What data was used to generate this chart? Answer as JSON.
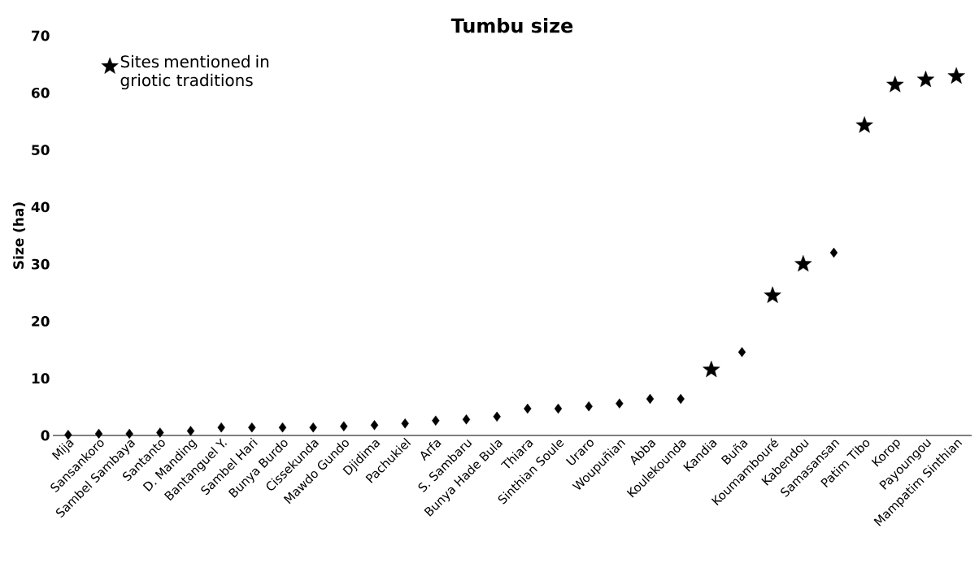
{
  "chart_data": {
    "type": "scatter",
    "title": "Tumbu size",
    "ylabel": "Size (ha)",
    "categories": [
      "Mija",
      "Sansankoro",
      "Sambel Sambaya",
      "Santanto",
      "D. Manding",
      "Bantanguel Y.",
      "Sambel Hari",
      "Bunya Burdo",
      "Cissekunda",
      "Mawdo Gundo",
      "Djidima",
      "Pachukiel",
      "Arfa",
      "S. Sambaru",
      "Bunya Hade Bula",
      "Thiara",
      "Sinthian Soule",
      "Uraro",
      "Woupuñian",
      "Abba",
      "Koulekounda",
      "Kandia",
      "Buña",
      "Koumambouré",
      "Kabendou",
      "Samasansan",
      "Patim Tibo",
      "Korop",
      "Payoungou",
      "Mampatim Sinthian"
    ],
    "series": [
      {
        "color": "#000000",
        "marker": "diamond",
        "values": [
          0.1,
          0.3,
          0.3,
          0.5,
          0.8,
          1.4,
          1.4,
          1.4,
          1.4,
          1.6,
          1.8,
          2.1,
          2.6,
          2.8,
          3.3,
          4.7,
          4.7,
          5.1,
          5.6,
          6.4,
          6.4,
          null,
          14.6,
          null,
          null,
          32,
          null,
          null,
          null,
          null
        ]
      },
      {
        "name": "Sites mentioned in griotic traditions",
        "color": "#000000",
        "marker": "star",
        "values": [
          null,
          null,
          null,
          null,
          null,
          null,
          null,
          null,
          null,
          null,
          null,
          null,
          null,
          null,
          null,
          null,
          null,
          null,
          null,
          null,
          null,
          11.5,
          null,
          24.5,
          30,
          null,
          54.3,
          61.4,
          62.3,
          62.9
        ]
      }
    ],
    "ylim": [
      0,
      70
    ],
    "yticks": [
      0,
      10,
      20,
      30,
      40,
      50,
      60,
      70
    ],
    "legend": "top left"
  }
}
